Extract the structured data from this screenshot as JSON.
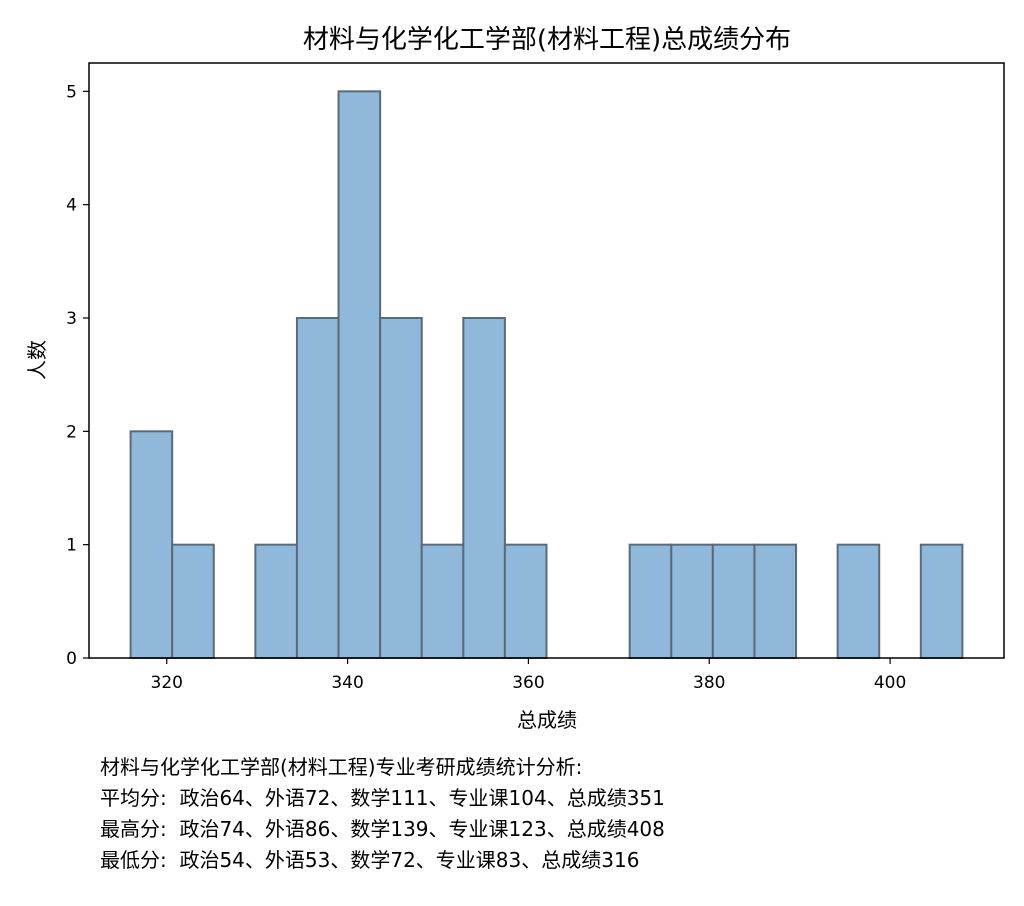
{
  "chart_data": {
    "type": "bar",
    "title": "材料与化学化工学部(材料工程)总成绩分布",
    "xlabel": "总成绩",
    "ylabel": "人数",
    "xlim": [
      311.4,
      412.6
    ],
    "ylim": [
      0,
      5.25
    ],
    "xticks": [
      320,
      340,
      360,
      380,
      400
    ],
    "yticks": [
      0,
      1,
      2,
      3,
      4,
      5
    ],
    "bin_start": 316,
    "bin_width": 4.6,
    "counts": [
      2,
      1,
      0,
      1,
      3,
      5,
      3,
      1,
      3,
      1,
      0,
      0,
      1,
      1,
      1,
      1,
      0,
      1,
      0,
      1
    ],
    "grid": false,
    "colors": {
      "bar_fill": "#8fb8da",
      "bar_edge": "#5a6a78"
    }
  },
  "summary": {
    "heading": "材料与化学化工学部(材料工程)专业考研成绩统计分析:",
    "avg": "平均分:  政治64、外语72、数学111、专业课104、总成绩351",
    "max": "最高分:  政治74、外语86、数学139、专业课123、总成绩408",
    "min": "最低分:  政治54、外语53、数学72、专业课83、总成绩316"
  }
}
